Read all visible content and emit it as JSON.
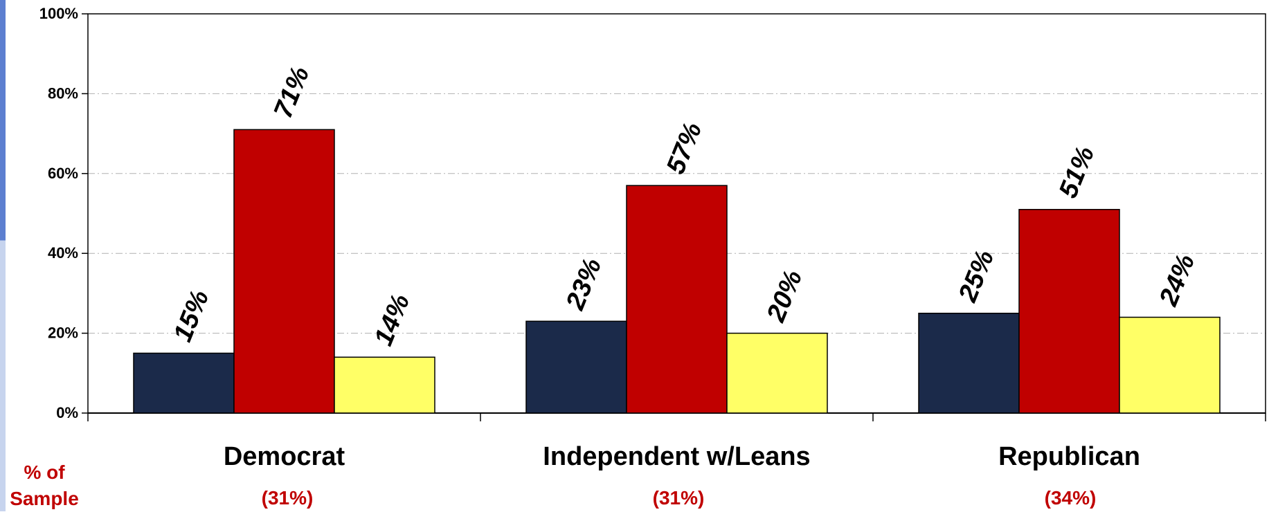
{
  "chart_data": {
    "type": "bar",
    "categories": [
      "Democrat",
      "Independent w/Leans",
      "Republican"
    ],
    "series": [
      {
        "values": [
          15,
          23,
          25
        ],
        "color": "#1b2a4a"
      },
      {
        "values": [
          71,
          57,
          51
        ],
        "color": "#c00000"
      },
      {
        "values": [
          14,
          20,
          24
        ],
        "color": "#ffff66"
      }
    ],
    "data_labels": [
      [
        "15%",
        "23%",
        "25%"
      ],
      [
        "71%",
        "57%",
        "51%"
      ],
      [
        "14%",
        "20%",
        "24%"
      ]
    ],
    "y_ticks": [
      0,
      20,
      40,
      60,
      80,
      100
    ],
    "y_tick_labels": [
      "0%",
      "20%",
      "40%",
      "60%",
      "80%",
      "100%"
    ],
    "ylim": [
      0,
      100
    ],
    "grid": true,
    "legend": "none"
  },
  "sample": {
    "label_line1": "% of",
    "label_line2": "Sample",
    "values": [
      "(31%)",
      "(31%)",
      "(34%)"
    ],
    "color": "#c00000"
  }
}
